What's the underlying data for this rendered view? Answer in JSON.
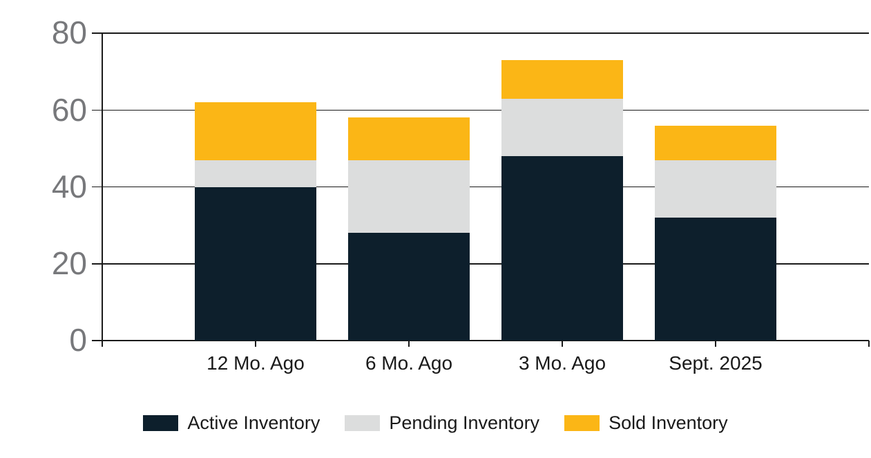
{
  "chart_data": {
    "type": "bar",
    "stacked": true,
    "title": "",
    "xlabel": "",
    "ylabel": "",
    "categories": [
      "12 Mo. Ago",
      "6 Mo. Ago",
      "3 Mo. Ago",
      "Sept. 2025"
    ],
    "series": [
      {
        "name": "Active Inventory",
        "color": "#0d1f2c",
        "values": [
          40,
          28,
          48,
          32
        ]
      },
      {
        "name": "Pending Inventory",
        "color": "#dcdddd",
        "values": [
          7,
          19,
          15,
          15
        ]
      },
      {
        "name": "Sold Inventory",
        "color": "#fbb616",
        "values": [
          15,
          11,
          10,
          9
        ]
      }
    ],
    "stack_totals": [
      62,
      58,
      73,
      56
    ],
    "ylim": [
      0,
      80
    ],
    "yticks": [
      0,
      20,
      40,
      60,
      80
    ],
    "grid": true,
    "legend_position": "bottom"
  },
  "colors": {
    "axis": "#1a1a1a",
    "y_tick_label": "#77787b",
    "x_tick_label": "#1a1a1a",
    "legend_text": "#1a1a1a",
    "background": "#ffffff"
  }
}
